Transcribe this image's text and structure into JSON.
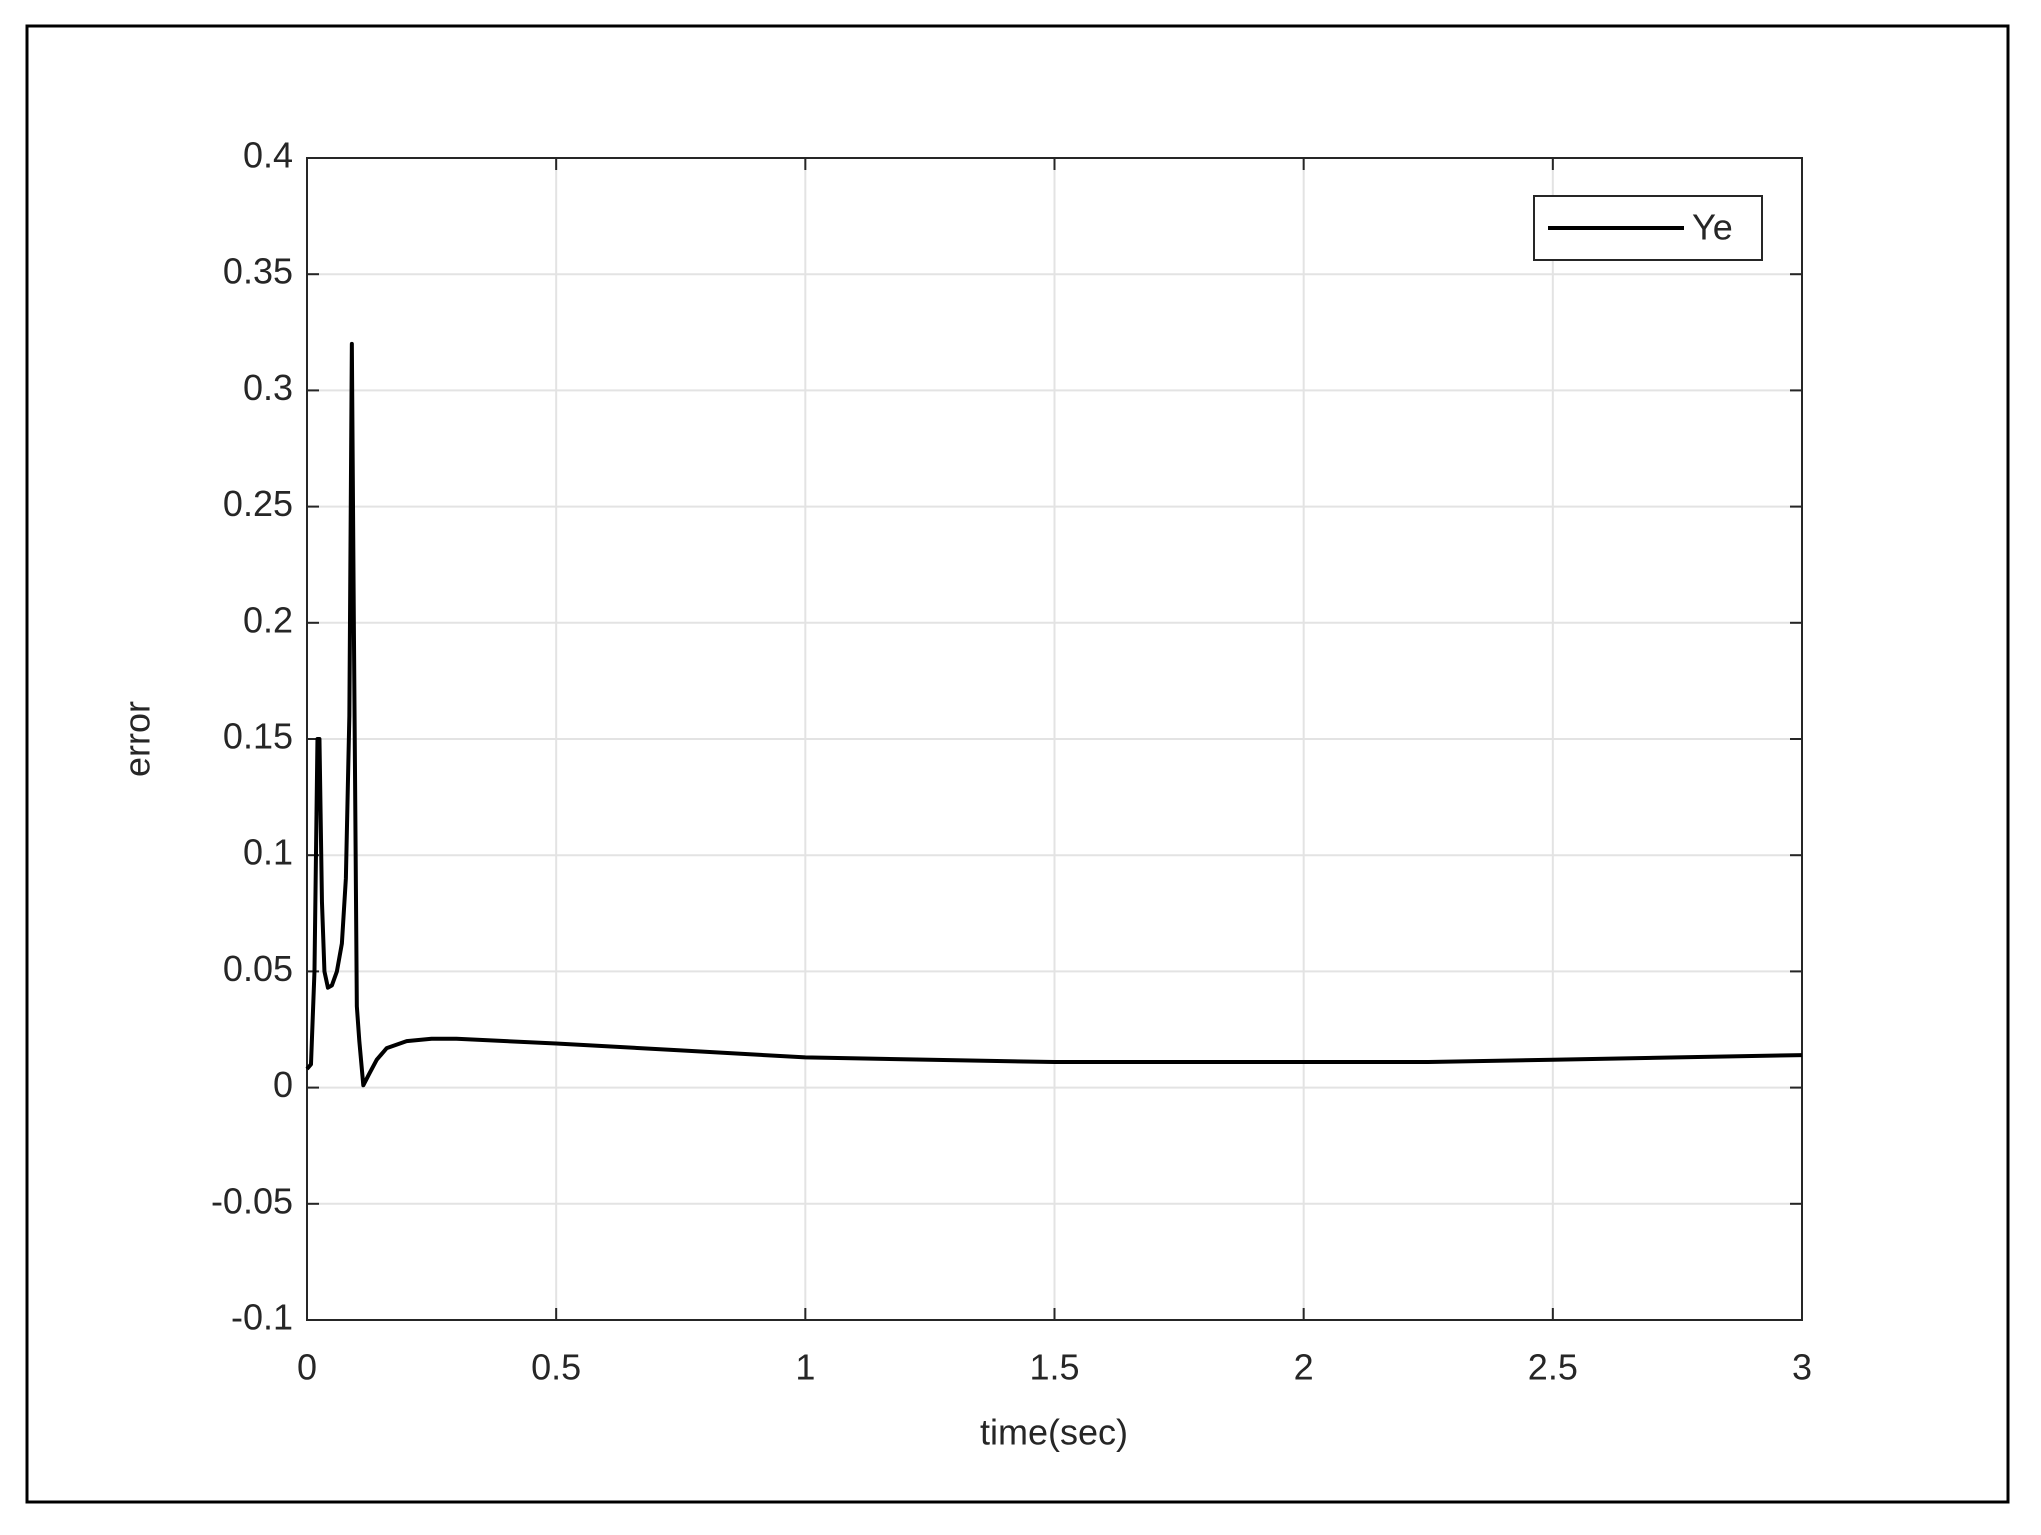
{
  "chart_data": {
    "type": "line",
    "x_label": "time(sec)",
    "y_label": "error",
    "x": [
      0,
      0.008,
      0.015,
      0.021,
      0.025,
      0.03,
      0.035,
      0.042,
      0.05,
      0.06,
      0.07,
      0.078,
      0.085,
      0.09,
      0.094,
      0.1,
      0.105,
      0.113,
      0.125,
      0.14,
      0.16,
      0.2,
      0.25,
      0.3,
      0.4,
      0.5,
      0.75,
      1,
      1.25,
      1.5,
      1.75,
      2,
      2.25,
      2.5,
      2.75,
      3
    ],
    "series": [
      {
        "name": "Ye",
        "color": "#000000",
        "values": [
          0.008,
          0.01,
          0.05,
          0.15,
          0.15,
          0.08,
          0.05,
          0.043,
          0.044,
          0.05,
          0.062,
          0.09,
          0.16,
          0.32,
          0.2,
          0.035,
          0.02,
          0.001,
          0.006,
          0.012,
          0.017,
          0.02,
          0.021,
          0.021,
          0.02,
          0.019,
          0.016,
          0.013,
          0.012,
          0.011,
          0.011,
          0.011,
          0.011,
          0.012,
          0.013,
          0.014
        ]
      }
    ],
    "xlim": [
      0,
      3
    ],
    "ylim": [
      -0.1,
      0.4
    ],
    "xticks": [
      0,
      0.5,
      1,
      1.5,
      2,
      2.5,
      3
    ],
    "yticks": [
      -0.1,
      -0.05,
      0,
      0.05,
      0.1,
      0.15,
      0.2,
      0.25,
      0.3,
      0.35,
      0.4
    ],
    "grid": true,
    "legend": "upper-right"
  }
}
